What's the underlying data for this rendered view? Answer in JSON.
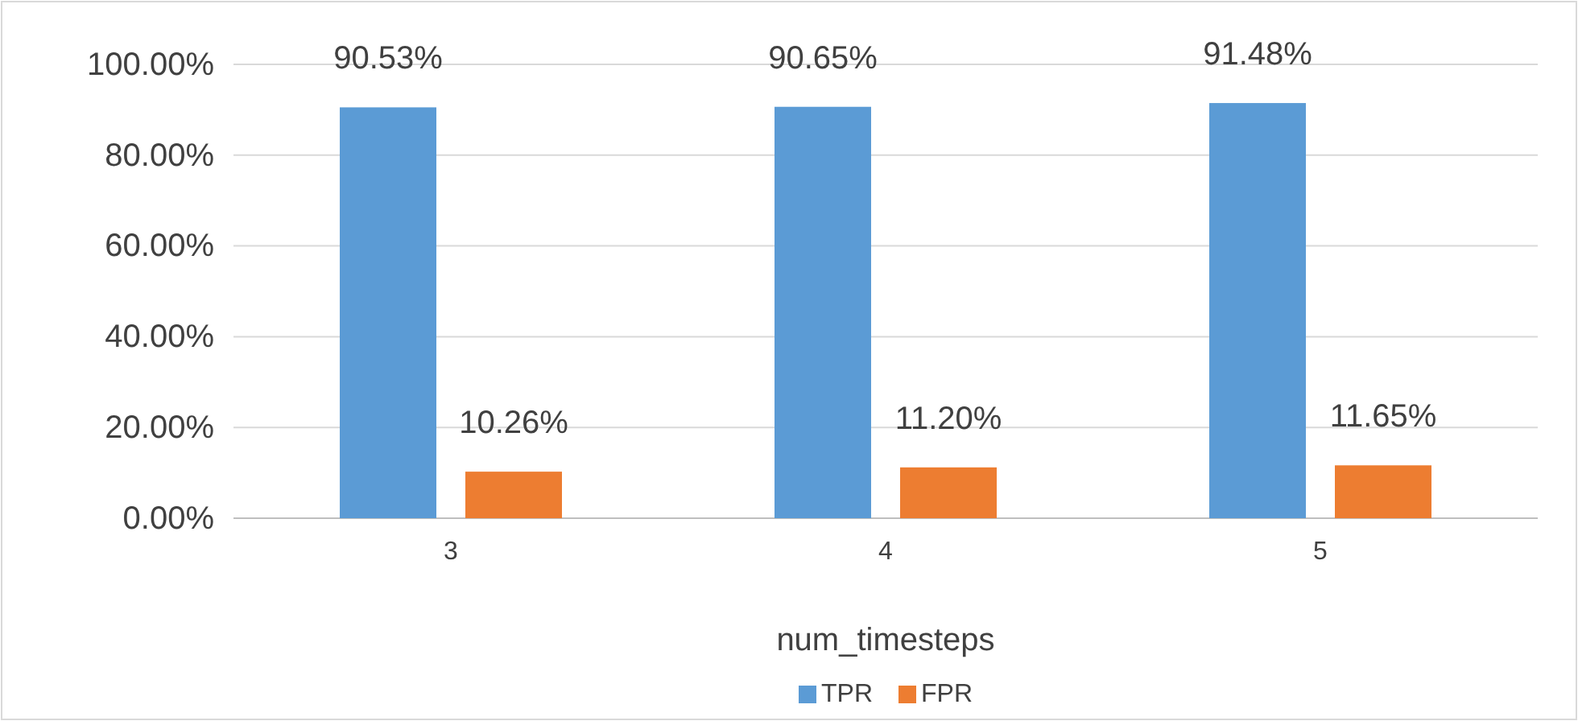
{
  "chart_data": {
    "type": "bar",
    "xlabel": "num_timesteps",
    "categories": [
      "3",
      "4",
      "5"
    ],
    "series": [
      {
        "name": "TPR",
        "color": "#5b9bd5",
        "values": [
          90.53,
          90.65,
          91.48
        ],
        "value_labels": [
          "90.53%",
          "90.65%",
          "91.48%"
        ]
      },
      {
        "name": "FPR",
        "color": "#ed7d31",
        "values": [
          10.26,
          11.2,
          11.65
        ],
        "value_labels": [
          "10.26%",
          "11.20%",
          "11.65%"
        ]
      }
    ],
    "ylim": [
      0,
      100
    ],
    "yticks": [
      {
        "value": 0,
        "label": "0.00%"
      },
      {
        "value": 20,
        "label": "20.00%"
      },
      {
        "value": 40,
        "label": "40.00%"
      },
      {
        "value": 60,
        "label": "60.00%"
      },
      {
        "value": 80,
        "label": "80.00%"
      },
      {
        "value": 100,
        "label": "100.00%"
      }
    ],
    "grid": "y",
    "legend": "bottom"
  }
}
